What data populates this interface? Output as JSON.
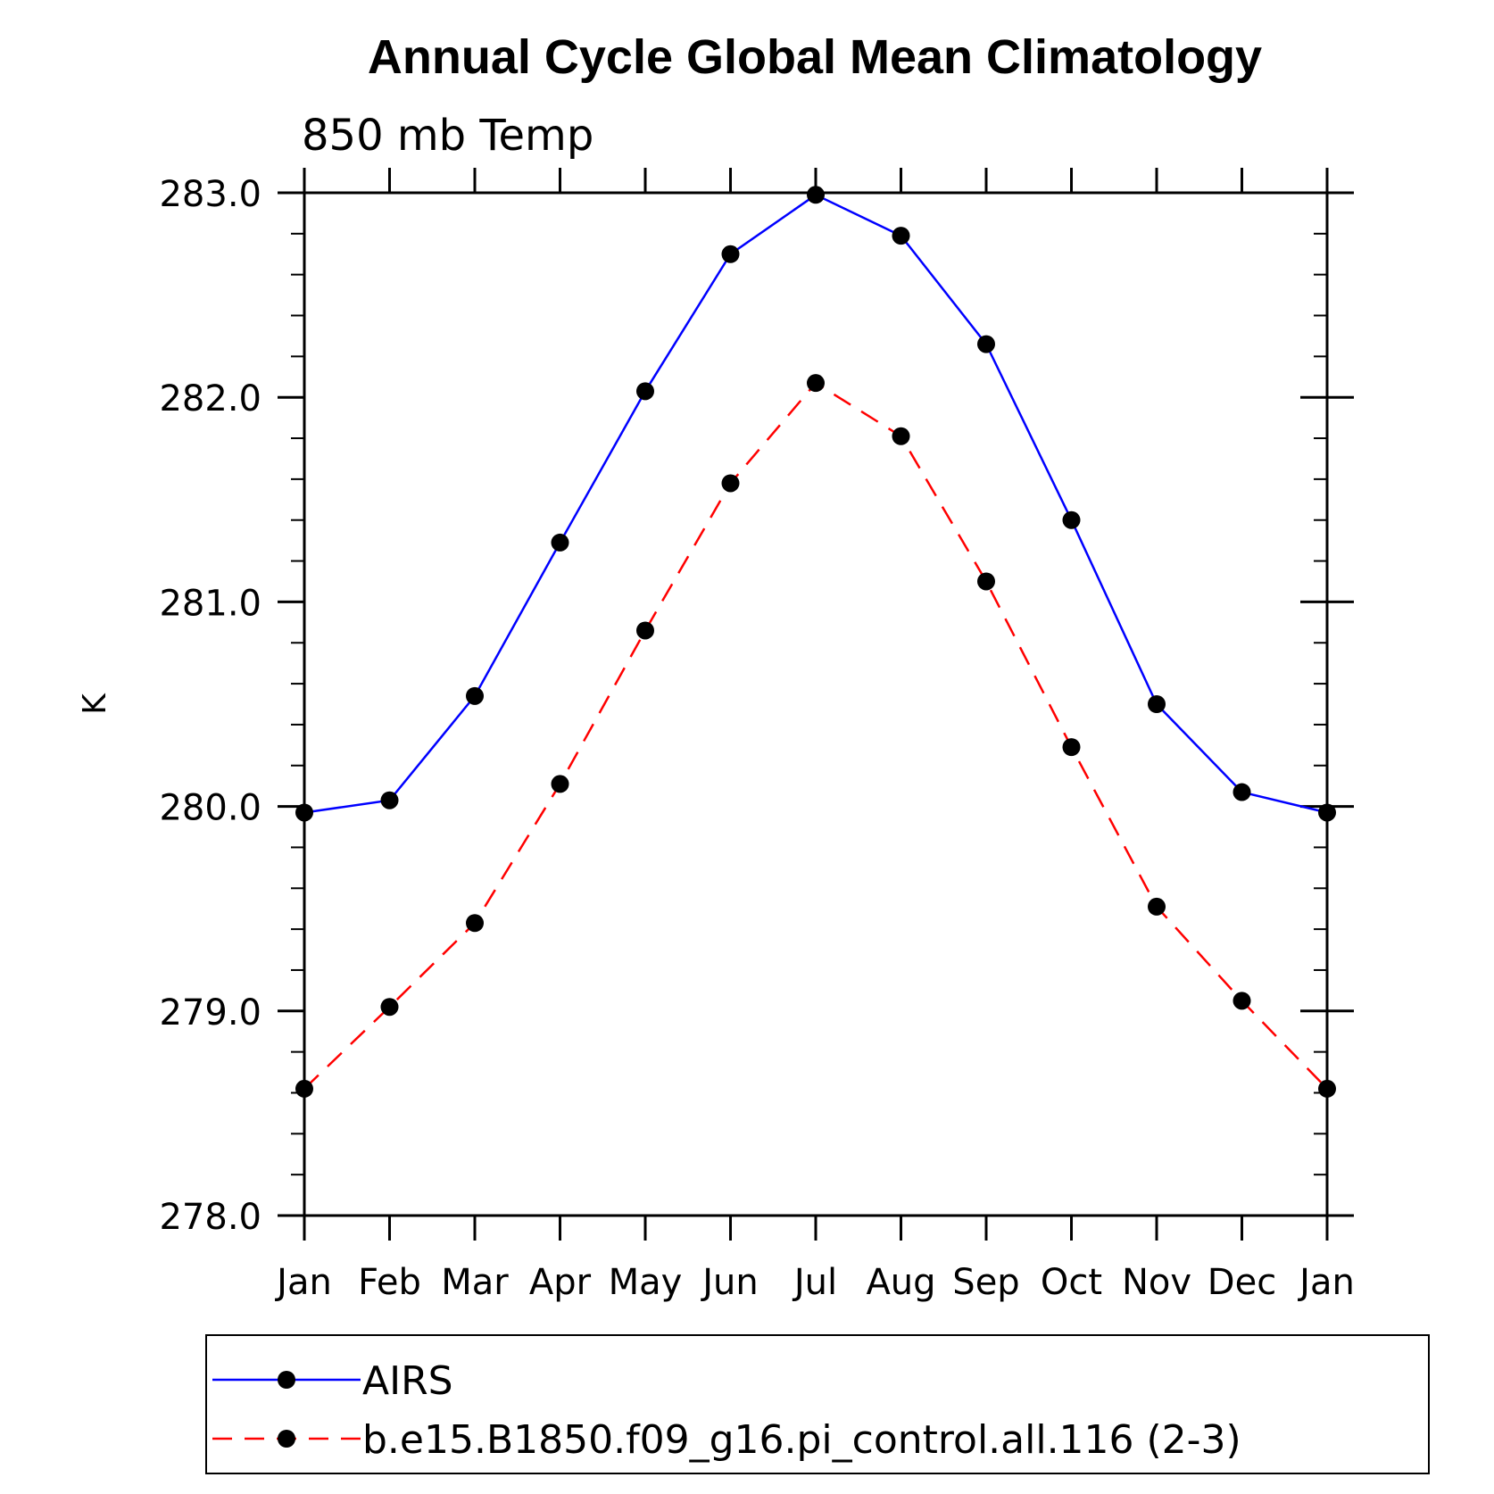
{
  "chart_data": {
    "type": "line",
    "title": "Annual Cycle Global Mean Climatology",
    "subtitle": "850 mb Temp",
    "ylabel": "K",
    "xlabel": "",
    "categories": [
      "Jan",
      "Feb",
      "Mar",
      "Apr",
      "May",
      "Jun",
      "Jul",
      "Aug",
      "Sep",
      "Oct",
      "Nov",
      "Dec",
      "Jan"
    ],
    "ylim": [
      278.0,
      283.0
    ],
    "yticks": [
      "278.0",
      "279.0",
      "280.0",
      "281.0",
      "282.0",
      "283.0"
    ],
    "y_minor_step": 0.2,
    "grid": false,
    "legend_position": "bottom",
    "series": [
      {
        "name": "AIRS",
        "color": "#0000ff",
        "dash": "solid",
        "marker": "circle",
        "values": [
          279.97,
          280.03,
          280.54,
          281.29,
          282.03,
          282.7,
          282.99,
          282.79,
          282.26,
          281.4,
          280.5,
          280.07,
          279.97
        ]
      },
      {
        "name": "b.e15.B1850.f09_g16.pi_control.all.116 (2-3)",
        "color": "#ff0000",
        "dash": "dashed",
        "marker": "circle",
        "values": [
          278.62,
          279.02,
          279.43,
          280.11,
          280.86,
          281.58,
          282.07,
          281.81,
          281.1,
          280.29,
          279.51,
          279.05,
          278.62
        ]
      }
    ]
  }
}
